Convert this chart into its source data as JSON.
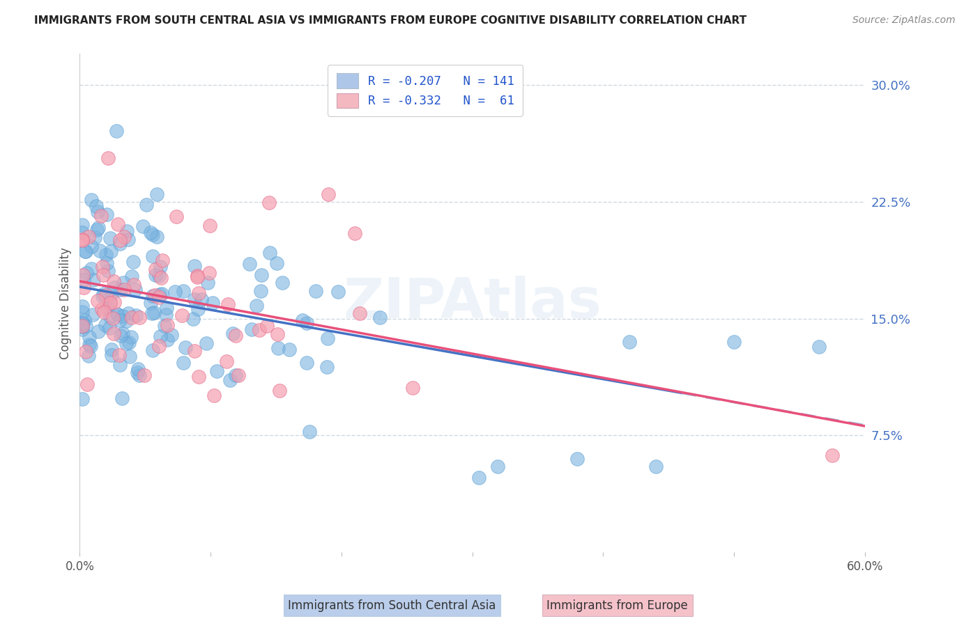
{
  "title": "IMMIGRANTS FROM SOUTH CENTRAL ASIA VS IMMIGRANTS FROM EUROPE COGNITIVE DISABILITY CORRELATION CHART",
  "source": "Source: ZipAtlas.com",
  "ylabel": "Cognitive Disability",
  "xlim": [
    0.0,
    0.6
  ],
  "ylim": [
    0.0,
    0.32
  ],
  "xtick_positions": [
    0.0,
    0.1,
    0.2,
    0.3,
    0.4,
    0.5,
    0.6
  ],
  "xticklabels": [
    "0.0%",
    "",
    "",
    "",
    "",
    "",
    "60.0%"
  ],
  "ytick_right_vals": [
    0.075,
    0.15,
    0.225,
    0.3
  ],
  "ytick_right_labels": [
    "7.5%",
    "15.0%",
    "22.5%",
    "30.0%"
  ],
  "watermark": "ZIPAtlas",
  "legend_label1": "R = -0.207   N = 141",
  "legend_label2": "R = -0.332   N =  61",
  "legend_color1": "#aec6e8",
  "legend_color2": "#f4b8c1",
  "series1_color": "#7ab3e0",
  "series1_edge": "#5a9fd4",
  "series2_color": "#f4a0b0",
  "series2_edge": "#e87090",
  "trendline1_color": "#4472c4",
  "trendline2_color": "#e8507a",
  "trendline1_dashed_color": "#a0b8d8",
  "background_color": "#ffffff",
  "grid_color": "#d0d8e0",
  "title_color": "#222222",
  "axis_label_color": "#555555",
  "right_tick_color": "#4472c4",
  "bottom_legend_color1": "#aec6e8",
  "bottom_legend_color2": "#f4b8c1",
  "bottom_legend_label1": "Immigrants from South Central Asia",
  "bottom_legend_label2": "Immigrants from Europe",
  "N1": 141,
  "N2": 61,
  "R1": -0.207,
  "R2": -0.332,
  "trendline1_solid_end": 0.46,
  "trendline1_dash_start": 0.46,
  "trendline1_dash_end": 0.6,
  "trendline2_end": 0.6,
  "figsize": [
    14.06,
    8.92
  ],
  "dpi": 100
}
